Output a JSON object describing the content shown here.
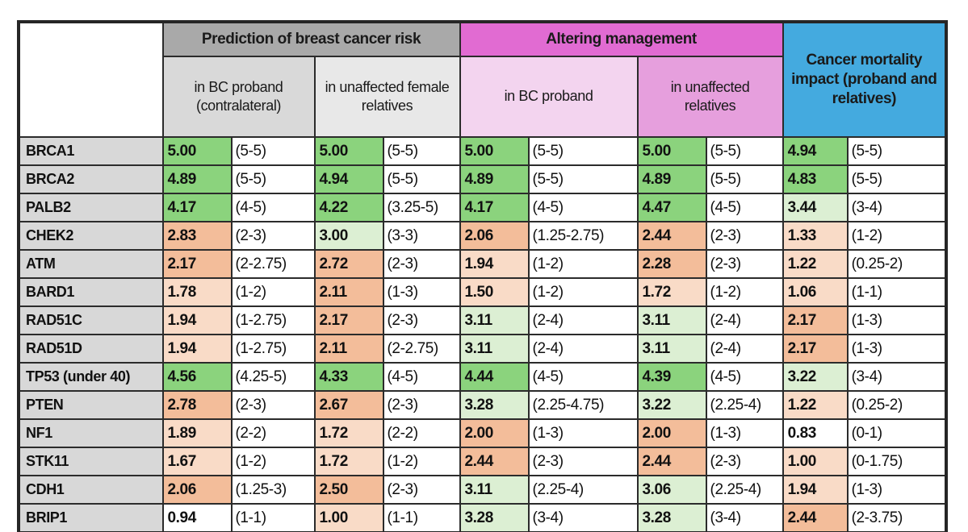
{
  "chart_data": {
    "type": "table",
    "description": "Gene panel utility scores (mean and range) colored by magnitude",
    "corner_label": "",
    "col_groups": [
      {
        "label": "Prediction of breast cancer risk",
        "bg": "#a9a9a9",
        "subs": [
          {
            "label": "in BC proband (contralateral)",
            "bg": "#d9d9d9"
          },
          {
            "label": "in unaffected female relatives",
            "bg": "#e8e8e8"
          }
        ]
      },
      {
        "label": "Altering management",
        "bg": "#e16bd2",
        "subs": [
          {
            "label": "in BC proband",
            "bg": "#f3d4ef"
          },
          {
            "label": "in unaffected relatives",
            "bg": "#e69fdd"
          }
        ]
      },
      {
        "label": "Cancer mortality impact (proband and relatives)",
        "bg": "#44aadf",
        "subs": []
      }
    ],
    "tone_colors": {
      "green": "#8bd37d",
      "light_green": "#dcefd3",
      "orange": "#f3bd9a",
      "light_orange": "#f9dbc7",
      "white": "#ffffff"
    },
    "rows": [
      {
        "gene": "BRCA1",
        "cells": [
          {
            "value": "5.00",
            "range": "(5-5)",
            "tone": "green"
          },
          {
            "value": "5.00",
            "range": "(5-5)",
            "tone": "green"
          },
          {
            "value": "5.00",
            "range": "(5-5)",
            "tone": "green"
          },
          {
            "value": "5.00",
            "range": "(5-5)",
            "tone": "green"
          },
          {
            "value": "4.94",
            "range": "(5-5)",
            "tone": "green"
          }
        ]
      },
      {
        "gene": "BRCA2",
        "cells": [
          {
            "value": "4.89",
            "range": "(5-5)",
            "tone": "green"
          },
          {
            "value": "4.94",
            "range": "(5-5)",
            "tone": "green"
          },
          {
            "value": "4.89",
            "range": "(5-5)",
            "tone": "green"
          },
          {
            "value": "4.89",
            "range": "(5-5)",
            "tone": "green"
          },
          {
            "value": "4.83",
            "range": "(5-5)",
            "tone": "green"
          }
        ]
      },
      {
        "gene": "PALB2",
        "cells": [
          {
            "value": "4.17",
            "range": "(4-5)",
            "tone": "green"
          },
          {
            "value": "4.22",
            "range": "(3.25-5)",
            "tone": "green"
          },
          {
            "value": "4.17",
            "range": "(4-5)",
            "tone": "green"
          },
          {
            "value": "4.47",
            "range": "(4-5)",
            "tone": "green"
          },
          {
            "value": "3.44",
            "range": "(3-4)",
            "tone": "light_green"
          }
        ]
      },
      {
        "gene": "CHEK2",
        "cells": [
          {
            "value": "2.83",
            "range": "(2-3)",
            "tone": "orange"
          },
          {
            "value": "3.00",
            "range": "(3-3)",
            "tone": "light_green"
          },
          {
            "value": "2.06",
            "range": "(1.25-2.75)",
            "tone": "orange"
          },
          {
            "value": "2.44",
            "range": "(2-3)",
            "tone": "orange"
          },
          {
            "value": "1.33",
            "range": "(1-2)",
            "tone": "light_orange"
          }
        ]
      },
      {
        "gene": "ATM",
        "cells": [
          {
            "value": "2.17",
            "range": "(2-2.75)",
            "tone": "orange"
          },
          {
            "value": "2.72",
            "range": "(2-3)",
            "tone": "orange"
          },
          {
            "value": "1.94",
            "range": "(1-2)",
            "tone": "light_orange"
          },
          {
            "value": "2.28",
            "range": "(2-3)",
            "tone": "orange"
          },
          {
            "value": "1.22",
            "range": "(0.25-2)",
            "tone": "light_orange"
          }
        ]
      },
      {
        "gene": "BARD1",
        "cells": [
          {
            "value": "1.78",
            "range": "(1-2)",
            "tone": "light_orange"
          },
          {
            "value": "2.11",
            "range": "(1-3)",
            "tone": "orange"
          },
          {
            "value": "1.50",
            "range": "(1-2)",
            "tone": "light_orange"
          },
          {
            "value": "1.72",
            "range": "(1-2)",
            "tone": "light_orange"
          },
          {
            "value": "1.06",
            "range": "(1-1)",
            "tone": "light_orange"
          }
        ]
      },
      {
        "gene": "RAD51C",
        "cells": [
          {
            "value": "1.94",
            "range": "(1-2.75)",
            "tone": "light_orange"
          },
          {
            "value": "2.17",
            "range": "(2-3)",
            "tone": "orange"
          },
          {
            "value": "3.11",
            "range": "(2-4)",
            "tone": "light_green"
          },
          {
            "value": "3.11",
            "range": "(2-4)",
            "tone": "light_green"
          },
          {
            "value": "2.17",
            "range": "(1-3)",
            "tone": "orange"
          }
        ]
      },
      {
        "gene": "RAD51D",
        "cells": [
          {
            "value": "1.94",
            "range": "(1-2.75)",
            "tone": "light_orange"
          },
          {
            "value": "2.11",
            "range": "(2-2.75)",
            "tone": "orange"
          },
          {
            "value": "3.11",
            "range": "(2-4)",
            "tone": "light_green"
          },
          {
            "value": "3.11",
            "range": "(2-4)",
            "tone": "light_green"
          },
          {
            "value": "2.17",
            "range": "(1-3)",
            "tone": "orange"
          }
        ]
      },
      {
        "gene": "TP53 (under 40)",
        "cells": [
          {
            "value": "4.56",
            "range": "(4.25-5)",
            "tone": "green"
          },
          {
            "value": "4.33",
            "range": "(4-5)",
            "tone": "green"
          },
          {
            "value": "4.44",
            "range": "(4-5)",
            "tone": "green"
          },
          {
            "value": "4.39",
            "range": "(4-5)",
            "tone": "green"
          },
          {
            "value": "3.22",
            "range": "(3-4)",
            "tone": "light_green"
          }
        ]
      },
      {
        "gene": "PTEN",
        "cells": [
          {
            "value": "2.78",
            "range": "(2-3)",
            "tone": "orange"
          },
          {
            "value": "2.67",
            "range": "(2-3)",
            "tone": "orange"
          },
          {
            "value": "3.28",
            "range": "(2.25-4.75)",
            "tone": "light_green"
          },
          {
            "value": "3.22",
            "range": "(2.25-4)",
            "tone": "light_green"
          },
          {
            "value": "1.22",
            "range": "(0.25-2)",
            "tone": "light_orange"
          }
        ]
      },
      {
        "gene": "NF1",
        "cells": [
          {
            "value": "1.89",
            "range": "(2-2)",
            "tone": "light_orange"
          },
          {
            "value": "1.72",
            "range": "(2-2)",
            "tone": "light_orange"
          },
          {
            "value": "2.00",
            "range": "(1-3)",
            "tone": "orange"
          },
          {
            "value": "2.00",
            "range": "(1-3)",
            "tone": "orange"
          },
          {
            "value": "0.83",
            "range": "(0-1)",
            "tone": "white"
          }
        ]
      },
      {
        "gene": "STK11",
        "cells": [
          {
            "value": "1.67",
            "range": "(1-2)",
            "tone": "light_orange"
          },
          {
            "value": "1.72",
            "range": "(1-2)",
            "tone": "light_orange"
          },
          {
            "value": "2.44",
            "range": "(2-3)",
            "tone": "orange"
          },
          {
            "value": "2.44",
            "range": "(2-3)",
            "tone": "orange"
          },
          {
            "value": "1.00",
            "range": "(0-1.75)",
            "tone": "light_orange"
          }
        ]
      },
      {
        "gene": "CDH1",
        "cells": [
          {
            "value": "2.06",
            "range": "(1.25-3)",
            "tone": "orange"
          },
          {
            "value": "2.50",
            "range": "(2-3)",
            "tone": "orange"
          },
          {
            "value": "3.11",
            "range": "(2.25-4)",
            "tone": "light_green"
          },
          {
            "value": "3.06",
            "range": "(2.25-4)",
            "tone": "light_green"
          },
          {
            "value": "1.94",
            "range": "(1-3)",
            "tone": "light_orange"
          }
        ]
      },
      {
        "gene": "BRIP1",
        "cells": [
          {
            "value": "0.94",
            "range": "(1-1)",
            "tone": "white"
          },
          {
            "value": "1.00",
            "range": "(1-1)",
            "tone": "light_orange"
          },
          {
            "value": "3.28",
            "range": "(3-4)",
            "tone": "light_green"
          },
          {
            "value": "3.28",
            "range": "(3-4)",
            "tone": "light_green"
          },
          {
            "value": "2.44",
            "range": "(2-3.75)",
            "tone": "orange"
          }
        ]
      }
    ]
  }
}
